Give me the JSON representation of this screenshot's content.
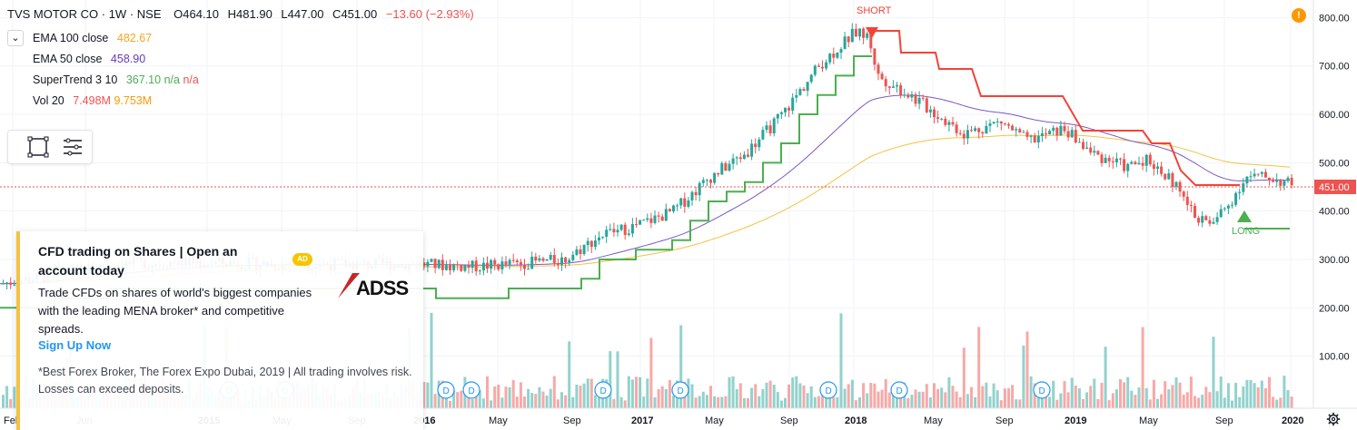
{
  "header": {
    "symbol": "TVS MOTOR CO · 1W · NSE",
    "open_label": "O",
    "open": "464.10",
    "high_label": "H",
    "high": "481.90",
    "low_label": "L",
    "low": "447.00",
    "close_label": "C",
    "close": "451.00",
    "change": "−13.60 (−2.93%)"
  },
  "indicators": [
    {
      "label": "EMA 100 close",
      "values": [
        "482.67"
      ],
      "colors": [
        "#f5a623"
      ]
    },
    {
      "label": "EMA 50 close",
      "values": [
        "458.90"
      ],
      "colors": [
        "#673ab7"
      ]
    },
    {
      "label": "SuperTrend 3 10",
      "values": [
        "367.10",
        "n/a",
        "n/a"
      ],
      "colors": [
        "#4caf50",
        "#4caf50",
        "#ef5350"
      ]
    },
    {
      "label": "Vol 20",
      "values": [
        "7.498M",
        "9.753M"
      ],
      "colors": [
        "#ef5350",
        "#ff9800"
      ]
    }
  ],
  "collapse_icon": "chevron-down-icon",
  "alert_badge": "!",
  "price_axis": {
    "ticks": [
      "800.00",
      "700.00",
      "600.00",
      "500.00",
      "400.00",
      "300.00",
      "200.00",
      "100.00"
    ],
    "current_price": "451.00",
    "current_price_color": "#ef5350"
  },
  "time_axis": {
    "labels": [
      "Feb",
      "Jun",
      "2015",
      "May",
      "Sep",
      "2016",
      "May",
      "Sep",
      "2017",
      "May",
      "Sep",
      "2018",
      "May",
      "Sep",
      "2019",
      "May",
      "Sep",
      "2020"
    ]
  },
  "markers": {
    "short": "SHORT",
    "long": "LONG",
    "dividend": "D"
  },
  "ad": {
    "title": "CFD trading on Shares | Open an account today",
    "badge": "AD",
    "body": "Trade CFDs on shares of world's biggest companies with the leading MENA broker* and competitive spreads.",
    "cta": "Sign Up Now",
    "fine_print": "*Best Forex Broker, The Forex Expo Dubai, 2019 | All trading involves risk. Losses can exceed deposits.",
    "logo_text": "ADSS"
  },
  "colors": {
    "up": "#26a69a",
    "down": "#ef5350",
    "ema100": "#f5c242",
    "ema50": "#7e57c2",
    "st_up": "#4caf50",
    "st_down": "#f44336"
  }
}
